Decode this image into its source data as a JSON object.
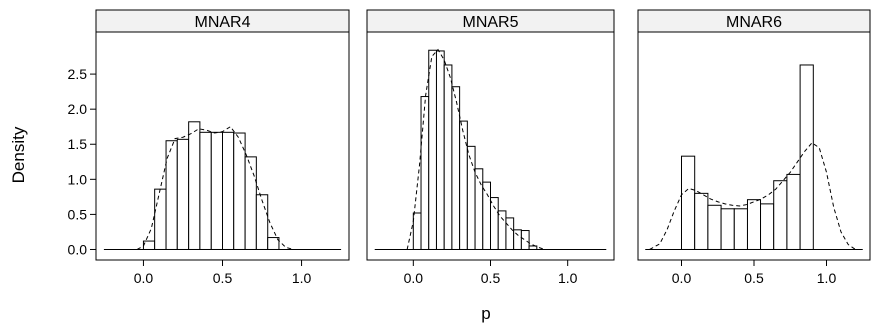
{
  "chart_data": [
    {
      "type": "histogram",
      "panel": "MNAR4",
      "bin_width": 0.0714,
      "bins": [
        {
          "x0": 0.0,
          "x1": 0.071,
          "density": 0.12
        },
        {
          "x0": 0.071,
          "x1": 0.143,
          "density": 0.86
        },
        {
          "x0": 0.143,
          "x1": 0.214,
          "density": 1.55
        },
        {
          "x0": 0.214,
          "x1": 0.286,
          "density": 1.57
        },
        {
          "x0": 0.286,
          "x1": 0.357,
          "density": 1.82
        },
        {
          "x0": 0.357,
          "x1": 0.429,
          "density": 1.67
        },
        {
          "x0": 0.429,
          "x1": 0.5,
          "density": 1.67
        },
        {
          "x0": 0.5,
          "x1": 0.571,
          "density": 1.67
        },
        {
          "x0": 0.571,
          "x1": 0.643,
          "density": 1.66
        },
        {
          "x0": 0.643,
          "x1": 0.714,
          "density": 1.32
        },
        {
          "x0": 0.714,
          "x1": 0.786,
          "density": 0.78
        },
        {
          "x0": 0.786,
          "x1": 0.857,
          "density": 0.17
        }
      ],
      "density_curve": [
        [
          -0.04,
          0.0
        ],
        [
          0.0,
          0.05
        ],
        [
          0.05,
          0.3
        ],
        [
          0.1,
          0.8
        ],
        [
          0.15,
          1.3
        ],
        [
          0.2,
          1.58
        ],
        [
          0.25,
          1.6
        ],
        [
          0.3,
          1.65
        ],
        [
          0.35,
          1.72
        ],
        [
          0.4,
          1.7
        ],
        [
          0.45,
          1.66
        ],
        [
          0.5,
          1.68
        ],
        [
          0.55,
          1.75
        ],
        [
          0.6,
          1.6
        ],
        [
          0.65,
          1.35
        ],
        [
          0.7,
          1.05
        ],
        [
          0.75,
          0.7
        ],
        [
          0.8,
          0.38
        ],
        [
          0.85,
          0.14
        ],
        [
          0.9,
          0.03
        ],
        [
          0.95,
          0.0
        ]
      ]
    },
    {
      "type": "histogram",
      "panel": "MNAR5",
      "bin_width": 0.05,
      "bins": [
        {
          "x0": 0.0,
          "x1": 0.05,
          "density": 0.52
        },
        {
          "x0": 0.05,
          "x1": 0.1,
          "density": 2.18
        },
        {
          "x0": 0.1,
          "x1": 0.15,
          "density": 2.84
        },
        {
          "x0": 0.15,
          "x1": 0.2,
          "density": 2.83
        },
        {
          "x0": 0.2,
          "x1": 0.25,
          "density": 2.63
        },
        {
          "x0": 0.25,
          "x1": 0.3,
          "density": 2.32
        },
        {
          "x0": 0.3,
          "x1": 0.35,
          "density": 1.83
        },
        {
          "x0": 0.35,
          "x1": 0.4,
          "density": 1.47
        },
        {
          "x0": 0.4,
          "x1": 0.45,
          "density": 1.15
        },
        {
          "x0": 0.45,
          "x1": 0.5,
          "density": 0.96
        },
        {
          "x0": 0.5,
          "x1": 0.55,
          "density": 0.74
        },
        {
          "x0": 0.55,
          "x1": 0.6,
          "density": 0.55
        },
        {
          "x0": 0.6,
          "x1": 0.65,
          "density": 0.45
        },
        {
          "x0": 0.65,
          "x1": 0.7,
          "density": 0.28
        },
        {
          "x0": 0.7,
          "x1": 0.75,
          "density": 0.27
        },
        {
          "x0": 0.75,
          "x1": 0.8,
          "density": 0.05
        }
      ],
      "density_curve": [
        [
          -0.04,
          0.0
        ],
        [
          0.0,
          0.4
        ],
        [
          0.04,
          1.2
        ],
        [
          0.08,
          2.2
        ],
        [
          0.12,
          2.75
        ],
        [
          0.16,
          2.85
        ],
        [
          0.2,
          2.7
        ],
        [
          0.24,
          2.45
        ],
        [
          0.28,
          2.1
        ],
        [
          0.32,
          1.7
        ],
        [
          0.36,
          1.35
        ],
        [
          0.4,
          1.1
        ],
        [
          0.44,
          0.92
        ],
        [
          0.48,
          0.78
        ],
        [
          0.52,
          0.62
        ],
        [
          0.56,
          0.48
        ],
        [
          0.6,
          0.38
        ],
        [
          0.64,
          0.28
        ],
        [
          0.68,
          0.2
        ],
        [
          0.72,
          0.14
        ],
        [
          0.76,
          0.08
        ],
        [
          0.8,
          0.04
        ],
        [
          0.85,
          0.0
        ]
      ]
    },
    {
      "type": "histogram",
      "panel": "MNAR6",
      "bin_width": 0.0909,
      "bins": [
        {
          "x0": 0.0,
          "x1": 0.091,
          "density": 1.33
        },
        {
          "x0": 0.091,
          "x1": 0.182,
          "density": 0.8
        },
        {
          "x0": 0.182,
          "x1": 0.273,
          "density": 0.63
        },
        {
          "x0": 0.273,
          "x1": 0.364,
          "density": 0.58
        },
        {
          "x0": 0.364,
          "x1": 0.455,
          "density": 0.58
        },
        {
          "x0": 0.455,
          "x1": 0.545,
          "density": 0.71
        },
        {
          "x0": 0.545,
          "x1": 0.636,
          "density": 0.65
        },
        {
          "x0": 0.636,
          "x1": 0.727,
          "density": 0.98
        },
        {
          "x0": 0.727,
          "x1": 0.818,
          "density": 1.07
        },
        {
          "x0": 0.818,
          "x1": 0.909,
          "density": 2.63
        }
      ],
      "density_curve": [
        [
          -0.22,
          0.0
        ],
        [
          -0.15,
          0.08
        ],
        [
          -0.1,
          0.28
        ],
        [
          -0.05,
          0.55
        ],
        [
          0.0,
          0.78
        ],
        [
          0.05,
          0.87
        ],
        [
          0.1,
          0.84
        ],
        [
          0.15,
          0.78
        ],
        [
          0.2,
          0.72
        ],
        [
          0.25,
          0.68
        ],
        [
          0.3,
          0.65
        ],
        [
          0.35,
          0.63
        ],
        [
          0.4,
          0.62
        ],
        [
          0.45,
          0.64
        ],
        [
          0.5,
          0.68
        ],
        [
          0.55,
          0.72
        ],
        [
          0.6,
          0.78
        ],
        [
          0.65,
          0.86
        ],
        [
          0.7,
          0.98
        ],
        [
          0.75,
          1.1
        ],
        [
          0.8,
          1.25
        ],
        [
          0.85,
          1.4
        ],
        [
          0.9,
          1.52
        ],
        [
          0.95,
          1.45
        ],
        [
          1.0,
          1.1
        ],
        [
          1.05,
          0.6
        ],
        [
          1.1,
          0.25
        ],
        [
          1.15,
          0.07
        ],
        [
          1.2,
          0.0
        ]
      ]
    }
  ],
  "axes": {
    "xlabel": "p",
    "ylabel": "Density",
    "xlim": [
      -0.3,
      1.3
    ],
    "ylim": [
      -0.15,
      3.1
    ],
    "x_ticks": [
      0.0,
      0.5,
      1.0
    ],
    "x_tick_labels": [
      "0.0",
      "0.5",
      "1.0"
    ],
    "y_ticks": [
      0.0,
      0.5,
      1.0,
      1.5,
      2.0,
      2.5
    ],
    "y_tick_labels": [
      "0.0",
      "0.5",
      "1.0",
      "1.5",
      "2.0",
      "2.5"
    ]
  },
  "colors": {
    "strip_fill": "#f2f2f2",
    "bar_fill": "#ffffff",
    "stroke": "#000000"
  }
}
